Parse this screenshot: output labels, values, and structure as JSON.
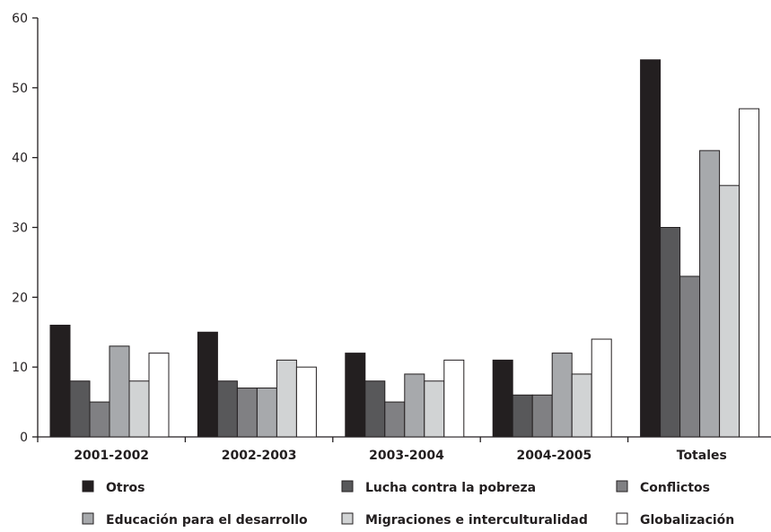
{
  "chart_data": {
    "type": "bar",
    "categories": [
      "2001-2002",
      "2002-2003",
      "2003-2004",
      "2004-2005",
      "Totales"
    ],
    "series": [
      {
        "name": "Otros",
        "values": [
          16,
          15,
          12,
          11,
          54
        ],
        "color": "#231f20"
      },
      {
        "name": "Lucha contra la pobreza",
        "values": [
          8,
          8,
          8,
          6,
          30
        ],
        "color": "#58585a"
      },
      {
        "name": "Conflictos",
        "values": [
          5,
          7,
          5,
          6,
          23
        ],
        "color": "#808083"
      },
      {
        "name": "Educación para el desarrollo",
        "values": [
          13,
          7,
          9,
          12,
          41
        ],
        "color": "#a7a9ac"
      },
      {
        "name": "Migraciones e interculturalidad",
        "values": [
          8,
          11,
          8,
          9,
          36
        ],
        "color": "#d1d3d4"
      },
      {
        "name": "Globalización",
        "values": [
          12,
          10,
          11,
          14,
          47
        ],
        "color": "#ffffff"
      }
    ],
    "yticks": [
      0,
      10,
      20,
      30,
      40,
      50,
      60
    ],
    "ylim": [
      0,
      60
    ],
    "grid": false,
    "legend_position": "bottom"
  }
}
